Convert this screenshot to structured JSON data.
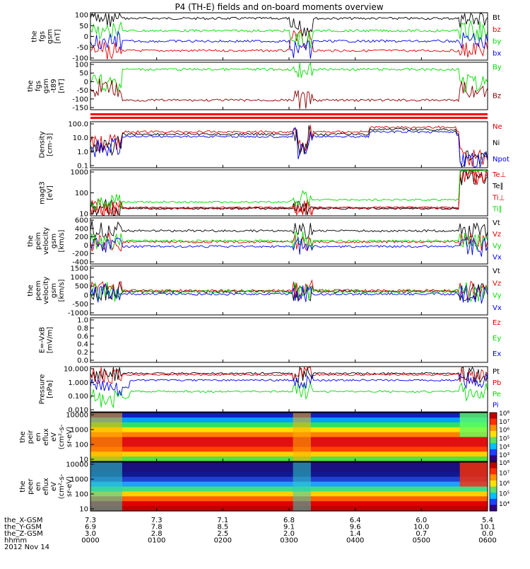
{
  "title": "P4 (TH-E) fields and on-board moments overview",
  "colors": {
    "black": "#000000",
    "red": "#e00000",
    "green": "#00dd00",
    "blue": "#0000ee",
    "darkred": "#8b0000"
  },
  "panels": [
    {
      "ylabel": [
        "the",
        "fgs",
        "gsm",
        "[nT]"
      ],
      "ticks": [
        "100",
        "50",
        "0",
        "-50",
        "-100"
      ],
      "legend": [
        {
          "t": "Bt",
          "c": "black"
        },
        {
          "t": "bz",
          "c": "red"
        },
        {
          "t": "by",
          "c": "green"
        },
        {
          "t": "bx",
          "c": "blue"
        }
      ]
    },
    {
      "ylabel": [
        "the",
        "fgs",
        "gsm",
        "-t89",
        "[nT]"
      ],
      "ticks": [
        "100",
        "50",
        "0",
        "-50",
        "-100",
        "-150"
      ],
      "legend": [
        {
          "t": "By",
          "c": "green"
        },
        {
          "t": "Bz",
          "c": "darkred"
        }
      ]
    },
    {
      "ylabel": [
        "Density",
        "[cm-3]"
      ],
      "ticks": [
        "100.0",
        "10.0",
        "1.0",
        "0.1"
      ],
      "legend": [
        {
          "t": "Ne",
          "c": "red"
        },
        {
          "t": "Ni",
          "c": "black"
        },
        {
          "t": "Npot",
          "c": "blue"
        }
      ]
    },
    {
      "ylabel": [
        "magt3",
        "[eV]"
      ],
      "ticks": [
        "1000",
        "100",
        "10"
      ],
      "legend": [
        {
          "t": "Te⊥",
          "c": "red"
        },
        {
          "t": "Te∥",
          "c": "black"
        },
        {
          "t": "Ti⊥",
          "c": "red"
        },
        {
          "t": "Ti∥",
          "c": "green"
        }
      ]
    },
    {
      "ylabel": [
        "the",
        "peim",
        "velocity",
        "gsm",
        "[km/s]"
      ],
      "ticks": [
        "600",
        "400",
        "200",
        "0",
        "-200",
        "-400"
      ],
      "legend": [
        {
          "t": "Vt",
          "c": "black"
        },
        {
          "t": "Vz",
          "c": "red"
        },
        {
          "t": "Vy",
          "c": "green"
        },
        {
          "t": "Vx",
          "c": "blue"
        }
      ]
    },
    {
      "ylabel": [
        "the",
        "peem",
        "velocity",
        "gsm",
        "[km/s]"
      ],
      "ticks": [
        "1500",
        "1000",
        "500",
        "0",
        "-500",
        "-1000"
      ],
      "legend": [
        {
          "t": "Vt",
          "c": "black"
        },
        {
          "t": "Vz",
          "c": "red"
        },
        {
          "t": "Vy",
          "c": "green"
        },
        {
          "t": "Vx",
          "c": "blue"
        }
      ]
    },
    {
      "ylabel": [
        "E=-VxB",
        "[mV/m]"
      ],
      "ticks": [
        "1.0",
        "0.8",
        "0.6",
        "0.4",
        "0.2",
        "0.0"
      ],
      "legend": [
        {
          "t": "Ez",
          "c": "red"
        },
        {
          "t": "Ey",
          "c": "green"
        },
        {
          "t": "Ex",
          "c": "blue"
        }
      ]
    },
    {
      "ylabel": [
        "Pressure",
        "[nPa]"
      ],
      "ticks": [
        "10.000",
        "1.000",
        "0.100",
        "0.010"
      ],
      "legend": [
        {
          "t": "Pt",
          "c": "black"
        },
        {
          "t": "Pb",
          "c": "red"
        },
        {
          "t": "Pe",
          "c": "green"
        },
        {
          "t": "Pi",
          "c": "blue"
        }
      ]
    },
    {
      "ylabel": [
        "the",
        "peir",
        "en",
        "eflux",
        "eV",
        "(cm²-s-",
        "sr-eV)"
      ],
      "ticks": [
        "10000",
        "1000",
        "100",
        "10"
      ],
      "cbar": [
        "10⁸",
        "10⁷",
        "10⁶",
        "10⁵",
        "10⁴",
        "10³"
      ],
      "legend": []
    },
    {
      "ylabel": [
        "the",
        "peer",
        "en",
        "eflux",
        "eV",
        "(cm²-s-",
        "sr-eV)"
      ],
      "ticks": [
        "10000",
        "1000",
        "100",
        "10"
      ],
      "cbar": [
        "10⁸",
        "10⁷",
        "10⁶",
        "10⁵",
        "10⁴"
      ],
      "legend": []
    }
  ],
  "orbit": {
    "labels": [
      "the_X-GSM",
      "the_Y-GSM",
      "the_Z-GSM",
      "hhmm",
      "2012 Nov 14"
    ],
    "x": [
      "7.3",
      "7.3",
      "7.1",
      "6.8",
      "6.4",
      "6.0",
      "5.4"
    ],
    "y": [
      "6.9",
      "7.8",
      "8.5",
      "9.1",
      "9.6",
      "10.0",
      "10.1"
    ],
    "z": [
      "3.0",
      "2.8",
      "2.5",
      "2.0",
      "1.4",
      "0.7",
      "0.0"
    ],
    "hhmm": [
      "0000",
      "0100",
      "0200",
      "0300",
      "0400",
      "0500",
      "0600"
    ]
  },
  "chart_data": {
    "type": "line",
    "title": "P4 (TH-E) fields and on-board moments overview",
    "x": [
      "0000",
      "0100",
      "0200",
      "0300",
      "0400",
      "0500",
      "0600"
    ],
    "series": [
      {
        "name": "Bt",
        "values": [
          80,
          75,
          75,
          70,
          70,
          70,
          70
        ]
      },
      {
        "name": "bz",
        "values": [
          -60,
          -60,
          -60,
          -55,
          -45,
          -35,
          -30
        ]
      },
      {
        "name": "by",
        "values": [
          40,
          40,
          40,
          25,
          0,
          -10,
          -10
        ]
      },
      {
        "name": "bx",
        "values": [
          -15,
          -5,
          10,
          15,
          25,
          35,
          30
        ]
      }
    ]
  }
}
